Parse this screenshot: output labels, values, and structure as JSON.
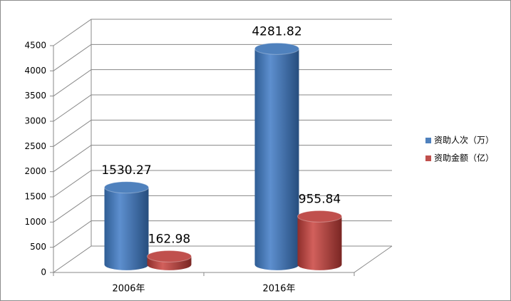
{
  "chart_data": {
    "type": "bar3d",
    "categories": [
      "2006年",
      "2016年"
    ],
    "series": [
      {
        "name": "资助人次（万）",
        "color": "#4f81bd",
        "values": [
          1530.27,
          4281.82
        ]
      },
      {
        "name": "资助金额（亿）",
        "color": "#c0504d",
        "values": [
          162.98,
          955.84
        ]
      }
    ],
    "ylim": [
      0,
      4500
    ],
    "yticks": [
      0,
      500,
      1000,
      1500,
      2000,
      2500,
      3000,
      3500,
      4000,
      4500
    ],
    "grid": true,
    "legend": "right"
  }
}
